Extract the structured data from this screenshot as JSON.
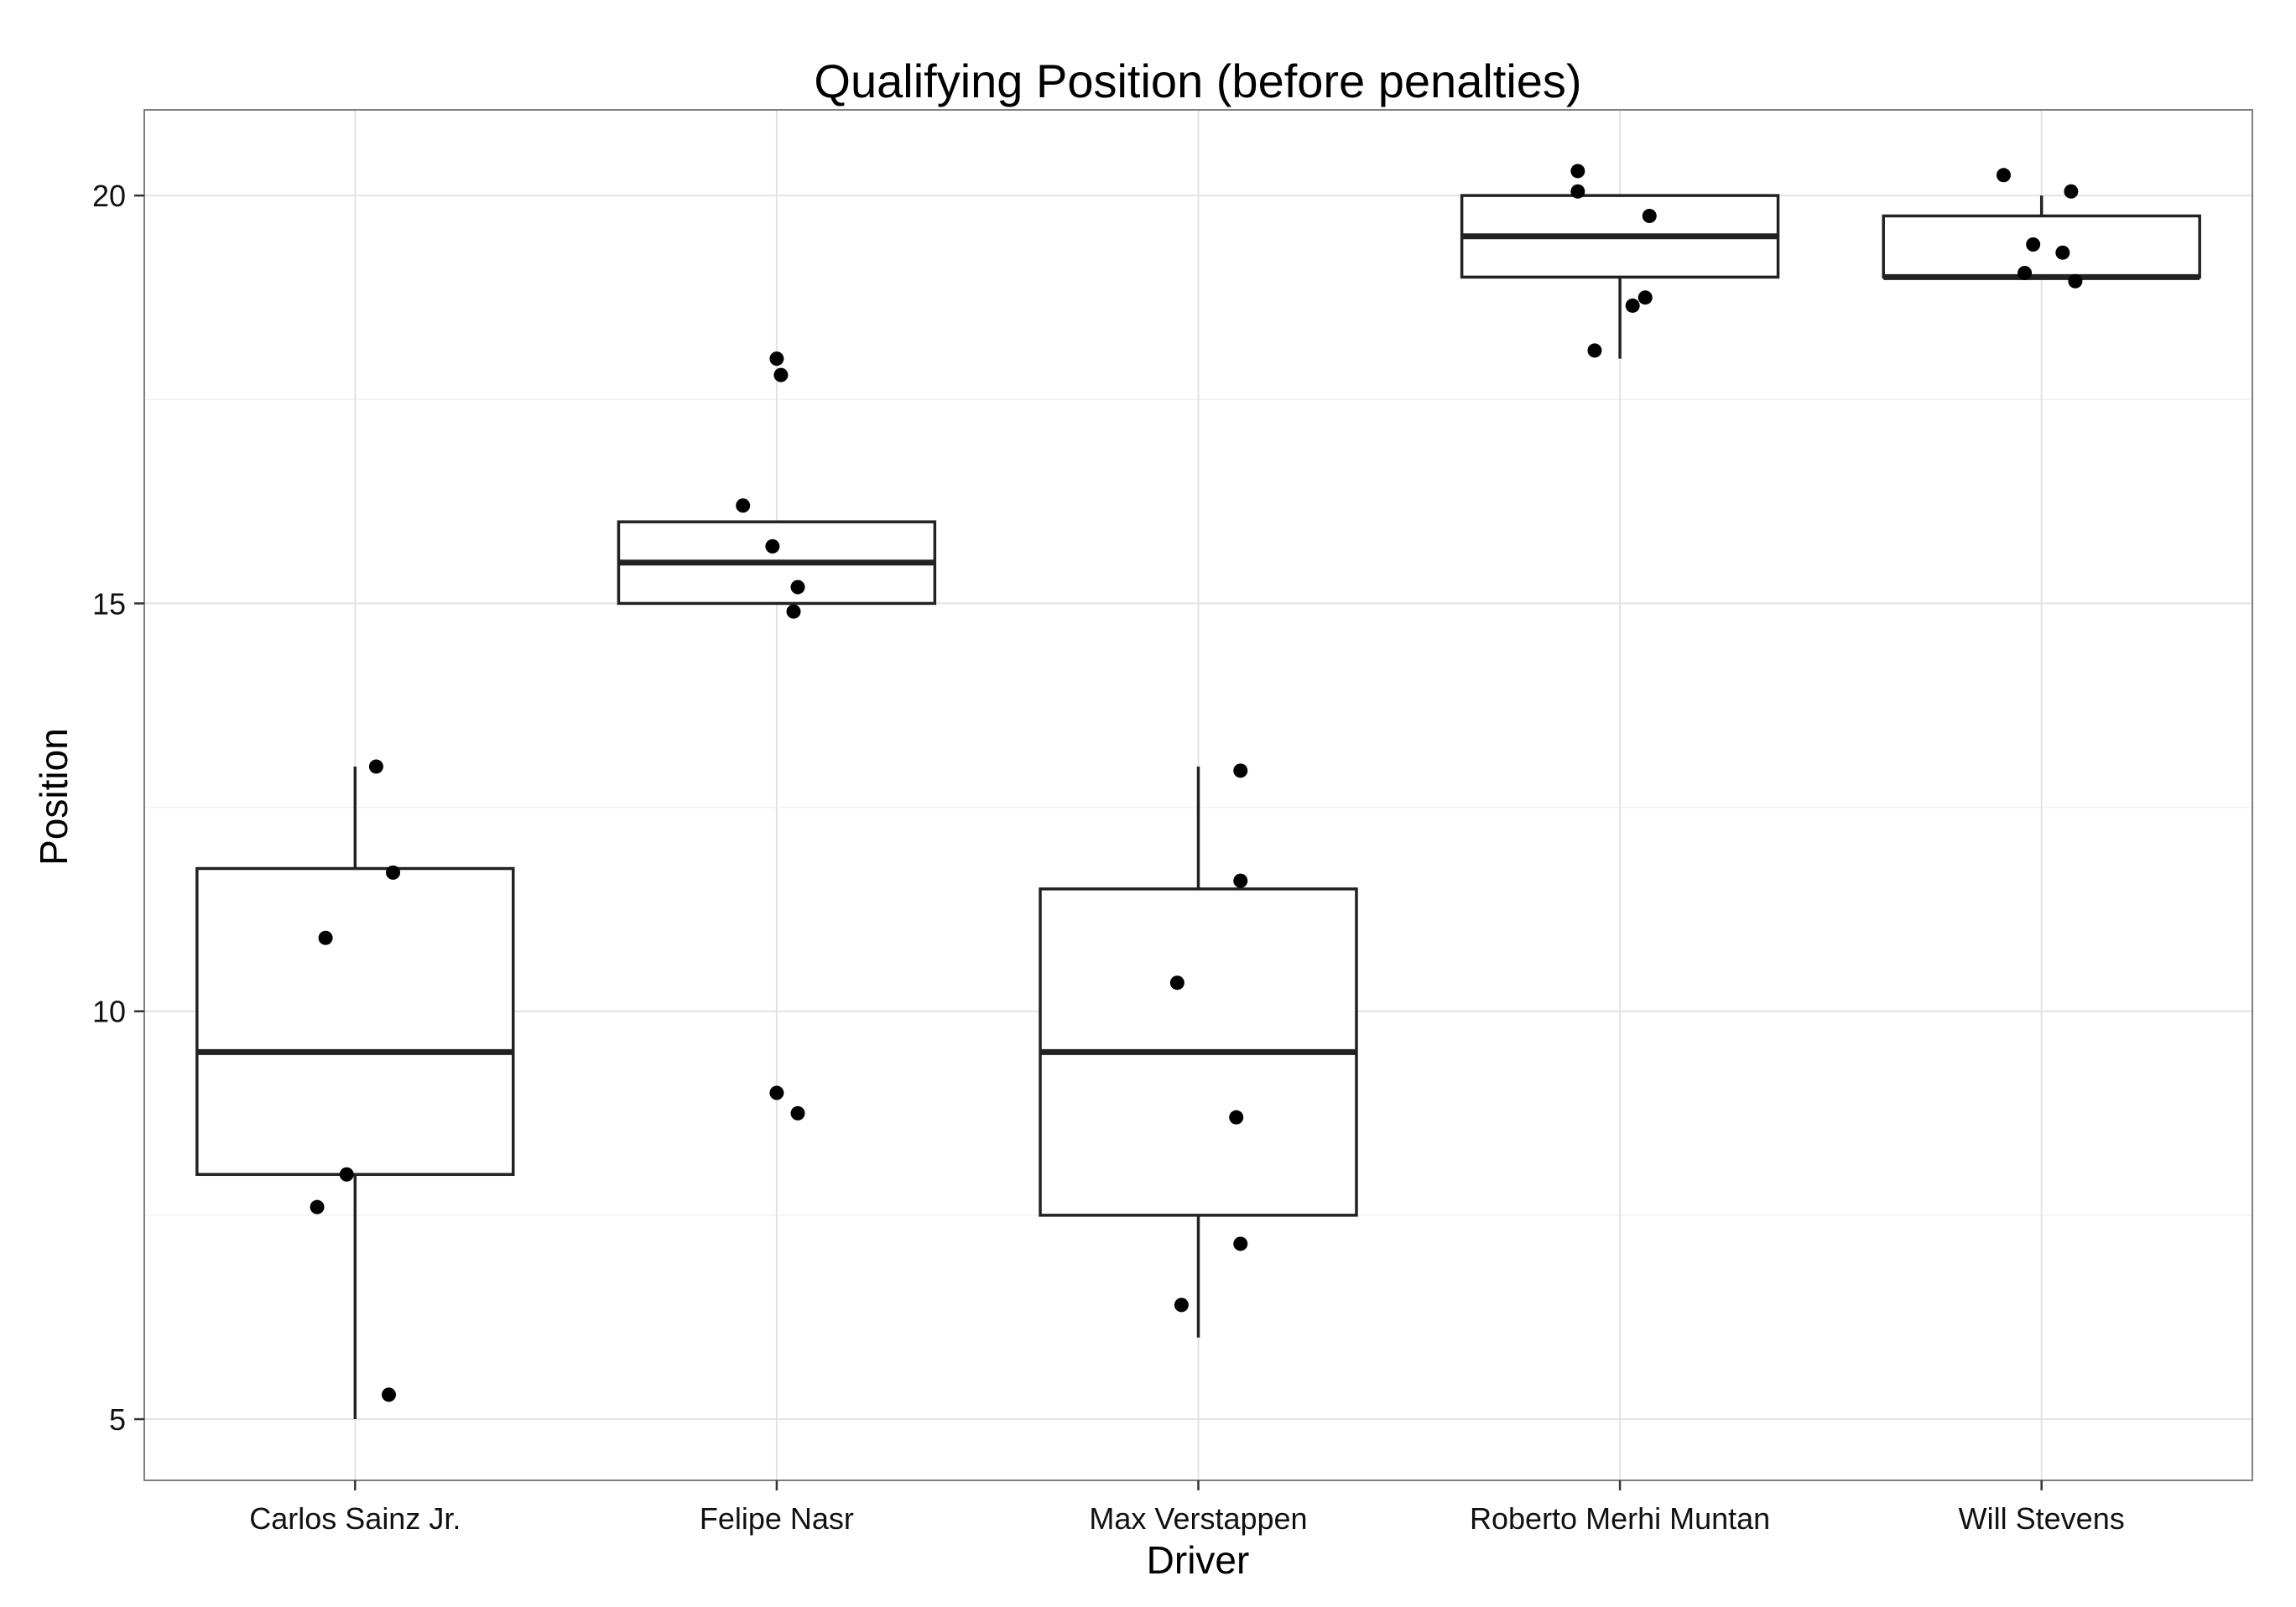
{
  "chart_data": {
    "type": "boxplot",
    "title": "Qualifying Position (before penalties)",
    "xlabel": "Driver",
    "ylabel": "Position",
    "ylim": [
      4.25,
      21.05
    ],
    "yticks": [
      5,
      10,
      15,
      20
    ],
    "grid": true,
    "categories": [
      "Carlos Sainz Jr.",
      "Felipe Nasr",
      "Max Verstappen",
      "Roberto Merhi Muntan",
      "Will Stevens"
    ],
    "boxes": [
      {
        "lower_whisker": 5,
        "q1": 8,
        "median": 9.5,
        "q3": 11.75,
        "upper_whisker": 13
      },
      {
        "lower_whisker": 15,
        "q1": 15,
        "median": 15.5,
        "q3": 16,
        "upper_whisker": 16
      },
      {
        "lower_whisker": 6,
        "q1": 7.5,
        "median": 9.5,
        "q3": 11.5,
        "upper_whisker": 13
      },
      {
        "lower_whisker": 18,
        "q1": 19,
        "median": 19.5,
        "q3": 20,
        "upper_whisker": 20
      },
      {
        "lower_whisker": 19,
        "q1": 19,
        "median": 19,
        "q3": 19.75,
        "upper_whisker": 20
      }
    ],
    "points": [
      {
        "category": "Carlos Sainz Jr.",
        "jitter": 0.05,
        "y": 13
      },
      {
        "category": "Carlos Sainz Jr.",
        "jitter": 0.09,
        "y": 11.7
      },
      {
        "category": "Carlos Sainz Jr.",
        "jitter": -0.07,
        "y": 10.9
      },
      {
        "category": "Carlos Sainz Jr.",
        "jitter": -0.02,
        "y": 8
      },
      {
        "category": "Carlos Sainz Jr.",
        "jitter": -0.09,
        "y": 7.6
      },
      {
        "category": "Carlos Sainz Jr.",
        "jitter": 0.08,
        "y": 5.3
      },
      {
        "category": "Felipe Nasr",
        "jitter": 0.0,
        "y": 18
      },
      {
        "category": "Felipe Nasr",
        "jitter": 0.01,
        "y": 17.8
      },
      {
        "category": "Felipe Nasr",
        "jitter": -0.08,
        "y": 16.2
      },
      {
        "category": "Felipe Nasr",
        "jitter": -0.01,
        "y": 15.7
      },
      {
        "category": "Felipe Nasr",
        "jitter": 0.05,
        "y": 15.2
      },
      {
        "category": "Felipe Nasr",
        "jitter": 0.04,
        "y": 14.9
      },
      {
        "category": "Felipe Nasr",
        "jitter": 0.0,
        "y": 9
      },
      {
        "category": "Felipe Nasr",
        "jitter": 0.05,
        "y": 8.75
      },
      {
        "category": "Max Verstappen",
        "jitter": 0.1,
        "y": 12.95
      },
      {
        "category": "Max Verstappen",
        "jitter": 0.1,
        "y": 11.6
      },
      {
        "category": "Max Verstappen",
        "jitter": -0.05,
        "y": 10.35
      },
      {
        "category": "Max Verstappen",
        "jitter": 0.09,
        "y": 8.7
      },
      {
        "category": "Max Verstappen",
        "jitter": 0.1,
        "y": 7.15
      },
      {
        "category": "Max Verstappen",
        "jitter": -0.04,
        "y": 6.4
      },
      {
        "category": "Roberto Merhi Muntan",
        "jitter": -0.1,
        "y": 20.3
      },
      {
        "category": "Roberto Merhi Muntan",
        "jitter": -0.1,
        "y": 20.05
      },
      {
        "category": "Roberto Merhi Muntan",
        "jitter": 0.07,
        "y": 19.75
      },
      {
        "category": "Roberto Merhi Muntan",
        "jitter": 0.06,
        "y": 18.75
      },
      {
        "category": "Roberto Merhi Muntan",
        "jitter": 0.03,
        "y": 18.65
      },
      {
        "category": "Roberto Merhi Muntan",
        "jitter": -0.06,
        "y": 18.1
      },
      {
        "category": "Will Stevens",
        "jitter": -0.09,
        "y": 20.25
      },
      {
        "category": "Will Stevens",
        "jitter": 0.07,
        "y": 20.05
      },
      {
        "category": "Will Stevens",
        "jitter": -0.02,
        "y": 19.4
      },
      {
        "category": "Will Stevens",
        "jitter": 0.05,
        "y": 19.3
      },
      {
        "category": "Will Stevens",
        "jitter": -0.04,
        "y": 19.05
      },
      {
        "category": "Will Stevens",
        "jitter": 0.08,
        "y": 18.95
      }
    ]
  }
}
